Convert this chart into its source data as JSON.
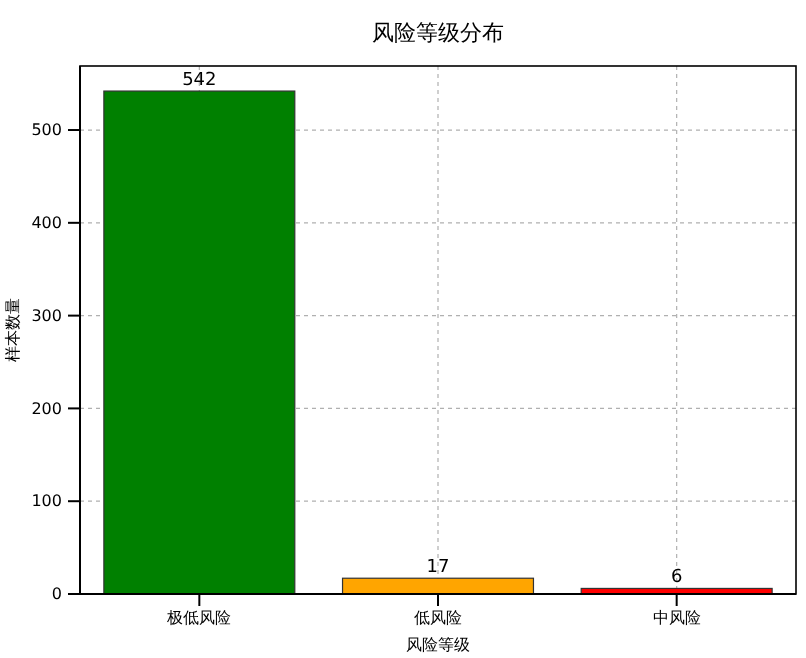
{
  "chart_data": {
    "type": "bar",
    "title": "风险等级分布",
    "xlabel": "风险等级",
    "ylabel": "样本数量",
    "categories": [
      "极低风险",
      "低风险",
      "中风险"
    ],
    "values": [
      542,
      17,
      6
    ],
    "colors": [
      "#008000",
      "#ffa500",
      "#ff0000"
    ],
    "ylim": [
      0,
      569
    ],
    "yticks": [
      0,
      100,
      200,
      300,
      400,
      500
    ],
    "grid": true,
    "data_labels": true
  }
}
